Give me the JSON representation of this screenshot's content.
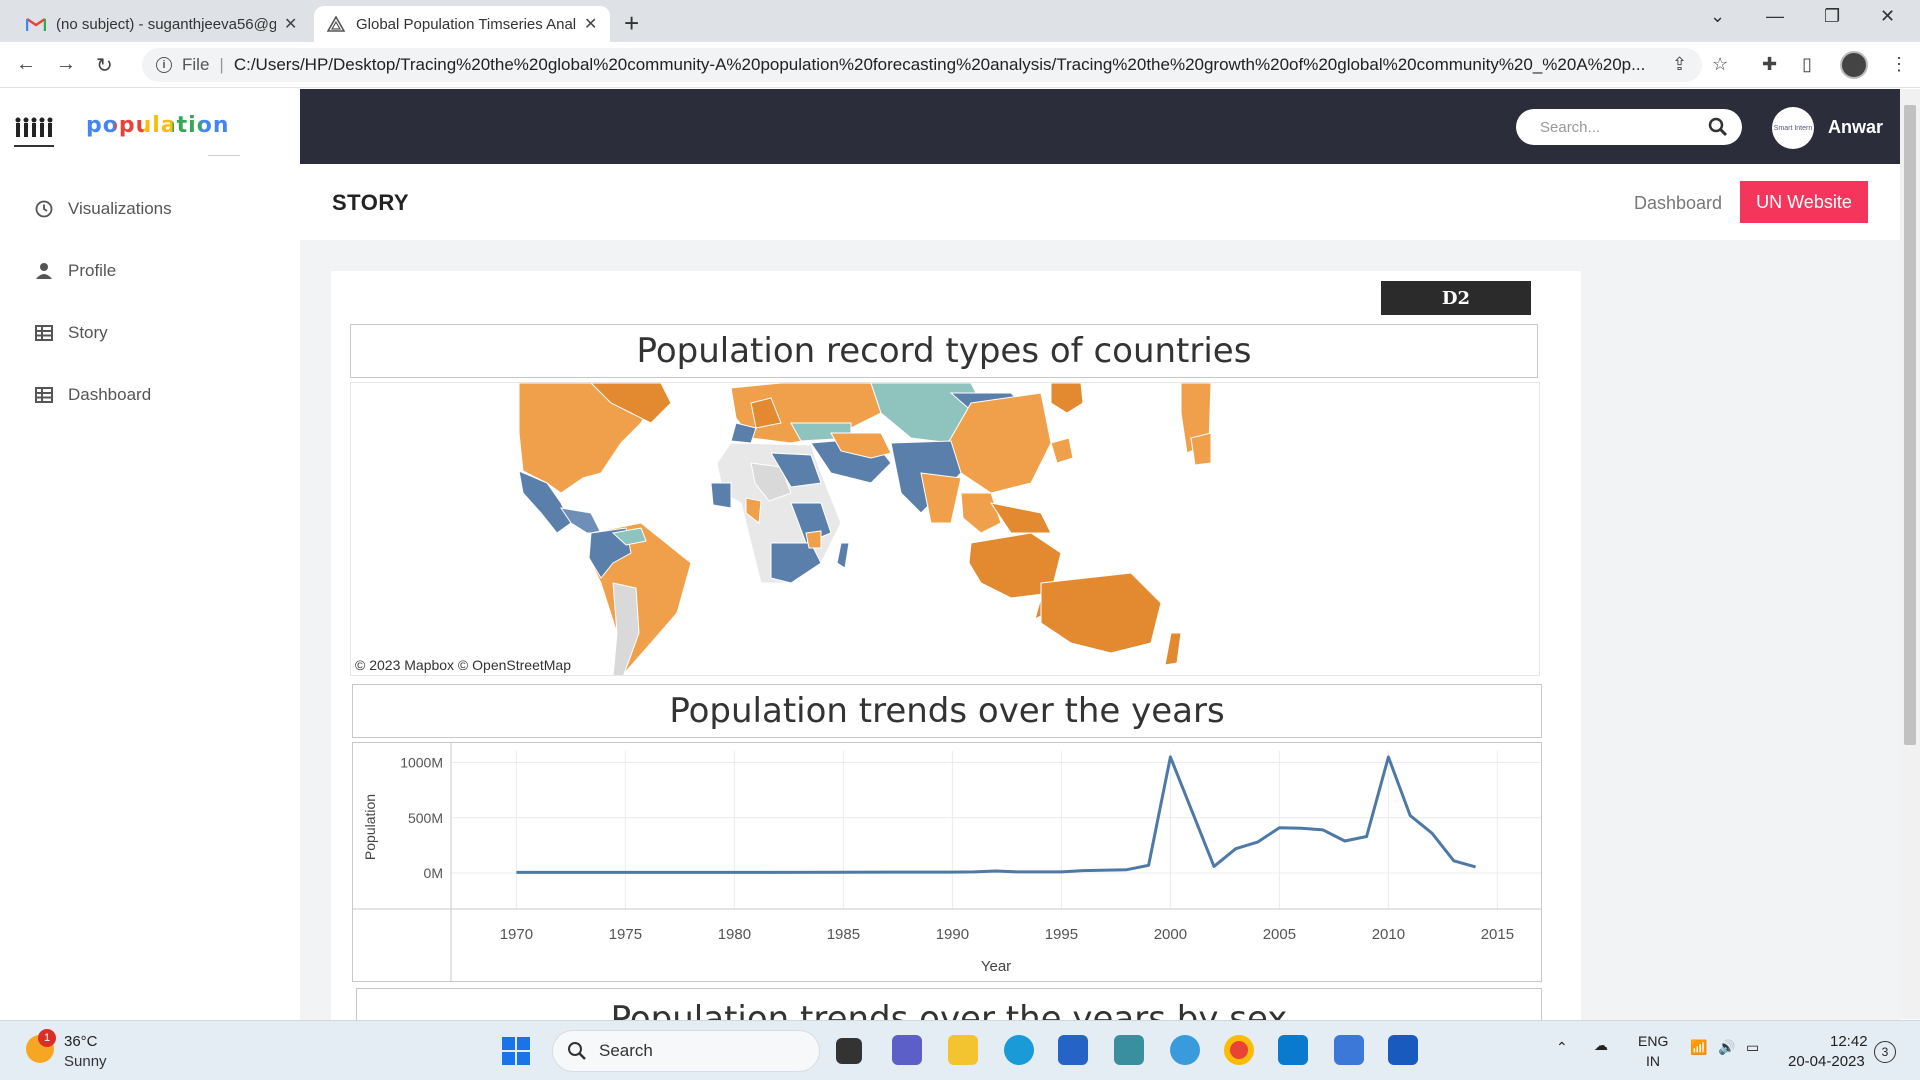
{
  "browser": {
    "tabs": [
      {
        "title": "(no subject) - suganthjeeva56@g",
        "icon": "gmail-icon"
      },
      {
        "title": "Global Population Timseries Anal",
        "icon": "app-logo-icon"
      }
    ],
    "address": {
      "scheme": "File",
      "url": "C:/Users/HP/Desktop/Tracing%20the%20global%20community-A%20population%20forecasting%20analysis/Tracing%20the%20growth%20of%20global%20community%20_%20A%20p..."
    }
  },
  "sidebar": {
    "logo_text": "population",
    "items": [
      {
        "label": "Visualizations",
        "icon": "clock-icon"
      },
      {
        "label": "Profile",
        "icon": "user-icon"
      },
      {
        "label": "Story",
        "icon": "table-icon"
      },
      {
        "label": "Dashboard",
        "icon": "table-icon"
      }
    ]
  },
  "topbar": {
    "search_placeholder": "Search...",
    "avatar_text": "Smart Intern",
    "username": "Anwar"
  },
  "page": {
    "title": "STORY",
    "dashboard_link": "Dashboard",
    "un_button": "UN Website"
  },
  "story": {
    "badge": "D2",
    "sections": [
      {
        "title": "Population record types of countries"
      },
      {
        "title": "Population trends over the years"
      },
      {
        "title": "Population trends over the years by sex"
      }
    ],
    "map_credit": "© 2023 Mapbox  © OpenStreetMap"
  },
  "chart_data": {
    "type": "line",
    "title": "",
    "xlabel": "Year",
    "ylabel": "Population",
    "x_ticks": [
      1970,
      1975,
      1980,
      1985,
      1990,
      1995,
      2000,
      2005,
      2010,
      2015
    ],
    "y_ticks": [
      "0M",
      "500M",
      "1000M"
    ],
    "xlim": [
      1967,
      2017
    ],
    "ylim": [
      0,
      1050
    ],
    "grid": true,
    "series": [
      {
        "color": "#4e79a7",
        "x": [
          1970,
          1975,
          1980,
          1985,
          1988,
          1990,
          1991,
          1992,
          1993,
          1995,
          1996,
          1998,
          1999,
          2000,
          2002,
          2003,
          2004,
          2005,
          2006,
          2007,
          2008,
          2009,
          2010,
          2011,
          2012,
          2013,
          2014
        ],
        "y": [
          5,
          5,
          5,
          6,
          8,
          8,
          10,
          18,
          10,
          10,
          22,
          30,
          70,
          1050,
          60,
          220,
          280,
          410,
          405,
          390,
          290,
          330,
          1050,
          520,
          360,
          110,
          55
        ]
      }
    ]
  },
  "taskbar": {
    "weather_temp": "36°C",
    "weather_desc": "Sunny",
    "weather_badge": "1",
    "search_label": "Search",
    "lang_top": "ENG",
    "lang_bottom": "IN",
    "time": "12:42",
    "date": "20-04-2023",
    "notifications": "3"
  }
}
